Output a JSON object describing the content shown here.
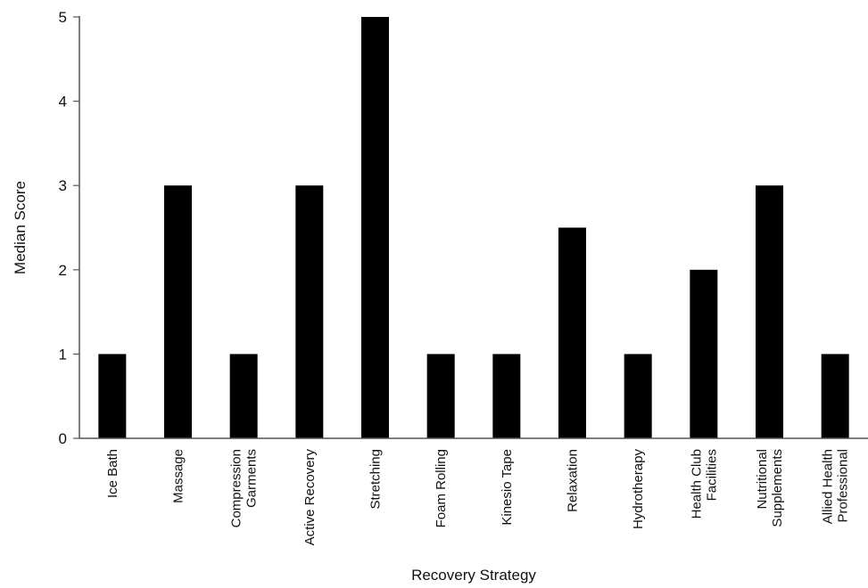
{
  "chart_data": {
    "type": "bar",
    "title": "",
    "xlabel": "Recovery Strategy",
    "ylabel": "Median Score",
    "ylim": [
      0,
      5
    ],
    "yticks": [
      0,
      1,
      2,
      3,
      4,
      5
    ],
    "grid": false,
    "legend": "none",
    "bar_color": "#000000",
    "categories": [
      [
        "Ice Bath"
      ],
      [
        "Massage"
      ],
      [
        "Compression",
        "Garments"
      ],
      [
        "Active Recovery"
      ],
      [
        "Stretching"
      ],
      [
        "Foam Rolling"
      ],
      [
        "Kinesio Tape"
      ],
      [
        "Relaxation"
      ],
      [
        "Hydrotherapy"
      ],
      [
        "Health Club",
        "Facilities"
      ],
      [
        "Nutritional",
        "Supplements"
      ],
      [
        "Allied Health",
        "Professional"
      ]
    ],
    "values": [
      1,
      3,
      1,
      3,
      5,
      1,
      1,
      2.5,
      1,
      2,
      3,
      1
    ]
  }
}
